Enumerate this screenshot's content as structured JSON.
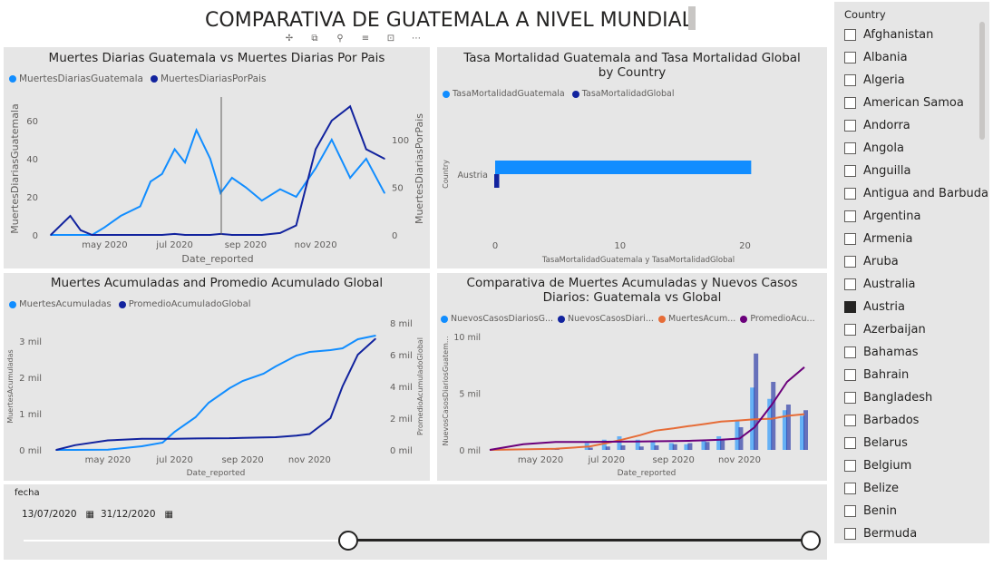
{
  "header": {
    "title": "COMPARATIVA DE GUATEMALA A NIVEL MUNDIAL"
  },
  "toolbar_icons": [
    "pin-icon",
    "copy-icon",
    "filter-icon",
    "focus-icon",
    "expand-icon",
    "more-icon"
  ],
  "colors": {
    "light_blue": "#118dff",
    "dark_blue": "#12239e",
    "orange": "#e66c37",
    "purple": "#6b007b",
    "panel": "#e6e6e6"
  },
  "chart1": {
    "title": "Muertes Diarias Guatemala vs Muertes Diarias Por Pais",
    "legend": [
      "MuertesDiariasGuatemala",
      "MuertesDiariasPorPais"
    ],
    "ylabel_left": "MuertesDiariasGuatemala",
    "ylabel_right": "MuertesDiariasPorPais",
    "xlabel": "Date_reported",
    "xticks": [
      "may 2020",
      "jul 2020",
      "sep 2020",
      "nov 2020"
    ],
    "yticks_left": [
      "0",
      "20",
      "40",
      "60"
    ],
    "yticks_right": [
      "0",
      "50",
      "100"
    ]
  },
  "chart2": {
    "title": "Tasa Mortalidad Guatemala and Tasa Mortalidad Global by Country",
    "legend": [
      "TasaMortalidadGuatemala",
      "TasaMortalidadGlobal"
    ],
    "ylabel": "Country",
    "xlabel": "TasaMortalidadGuatemala y TasaMortalidadGlobal",
    "category": "Austria",
    "xticks": [
      "0",
      "10",
      "20"
    ]
  },
  "chart3": {
    "title": "Muertes Acumuladas and Promedio Acumulado Global",
    "legend": [
      "MuertesAcumuladas",
      "PromedioAcumuladoGlobal"
    ],
    "ylabel_left": "MuertesAcumuladas",
    "ylabel_right": "PromedioAcumuladoGlobal",
    "xlabel": "Date_reported",
    "xticks": [
      "may 2020",
      "jul 2020",
      "sep 2020",
      "nov 2020"
    ],
    "yticks_left": [
      "0 mil",
      "1 mil",
      "2 mil",
      "3 mil"
    ],
    "yticks_right": [
      "0 mil",
      "2 mil",
      "4 mil",
      "6 mil",
      "8 mil"
    ]
  },
  "chart4": {
    "title": "Comparativa de Muertes Acumuladas y Nuevos Casos Diarios: Guatemala vs Global",
    "legend": [
      "NuevosCasosDiariosG...",
      "NuevosCasosDiari...",
      "MuertesAcum...",
      "PromedioAcu..."
    ],
    "ylabel": "NuevosCasosDiariosGuatem...",
    "xlabel": "Date_reported",
    "xticks": [
      "may 2020",
      "jul 2020",
      "sep 2020",
      "nov 2020"
    ],
    "yticks": [
      "0 mil",
      "5 mil",
      "10 mil"
    ]
  },
  "chart_data": [
    {
      "type": "line",
      "title": "Muertes Diarias Guatemala vs Muertes Diarias Por Pais",
      "xlabel": "Date_reported",
      "ylabel": "MuertesDiariasGuatemala",
      "y2label": "MuertesDiariasPorPais",
      "ylim": [
        0,
        70
      ],
      "y2lim": [
        0,
        140
      ],
      "x": [
        "2020-03-15",
        "2020-04-01",
        "2020-04-10",
        "2020-04-20",
        "2020-05-01",
        "2020-05-15",
        "2020-06-01",
        "2020-06-10",
        "2020-06-20",
        "2020-07-01",
        "2020-07-10",
        "2020-07-20",
        "2020-08-01",
        "2020-08-10",
        "2020-08-20",
        "2020-09-01",
        "2020-09-15",
        "2020-10-01",
        "2020-10-15",
        "2020-11-01",
        "2020-11-15",
        "2020-12-01",
        "2020-12-15",
        "2020-12-31"
      ],
      "series": [
        {
          "name": "MuertesDiariasGuatemala",
          "values": [
            0,
            0,
            0,
            0,
            4,
            10,
            15,
            28,
            32,
            45,
            38,
            55,
            40,
            22,
            30,
            25,
            18,
            24,
            20,
            35,
            50,
            30,
            40,
            22
          ]
        },
        {
          "name": "MuertesDiariasPorPais",
          "values": [
            0,
            20,
            5,
            0,
            0,
            0,
            0,
            0,
            0,
            1,
            0,
            0,
            0,
            1,
            0,
            0,
            0,
            2,
            10,
            90,
            120,
            135,
            90,
            80
          ]
        }
      ]
    },
    {
      "type": "bar",
      "title": "Tasa Mortalidad Guatemala and Tasa Mortalidad Global by Country",
      "xlabel": "TasaMortalidadGuatemala y TasaMortalidadGlobal",
      "ylabel": "Country",
      "categories": [
        "Austria"
      ],
      "xlim": [
        0,
        22
      ],
      "series": [
        {
          "name": "TasaMortalidadGuatemala",
          "values": [
            20.5
          ]
        },
        {
          "name": "TasaMortalidadGlobal",
          "values": [
            0.4
          ]
        }
      ]
    },
    {
      "type": "line",
      "title": "Muertes Acumuladas and Promedio Acumulado Global",
      "xlabel": "Date_reported",
      "ylabel": "MuertesAcumuladas",
      "y2label": "PromedioAcumuladoGlobal",
      "ylim": [
        0,
        3500
      ],
      "y2lim": [
        0,
        8000
      ],
      "x": [
        "2020-03-15",
        "2020-04-01",
        "2020-05-01",
        "2020-06-01",
        "2020-06-20",
        "2020-07-01",
        "2020-07-20",
        "2020-08-01",
        "2020-08-20",
        "2020-09-01",
        "2020-09-20",
        "2020-10-01",
        "2020-10-20",
        "2020-11-01",
        "2020-11-20",
        "2020-12-01",
        "2020-12-15",
        "2020-12-31"
      ],
      "series": [
        {
          "name": "MuertesAcumuladas",
          "values": [
            0,
            0,
            5,
            100,
            200,
            500,
            900,
            1300,
            1700,
            1900,
            2100,
            2300,
            2600,
            2700,
            2750,
            2800,
            3050,
            3150
          ]
        },
        {
          "name": "PromedioAcumuladoGlobal",
          "values": [
            0,
            300,
            600,
            700,
            700,
            700,
            720,
            730,
            740,
            760,
            780,
            800,
            900,
            1000,
            2000,
            4000,
            6000,
            7000
          ]
        }
      ]
    },
    {
      "type": "line",
      "title": "Comparativa de Muertes Acumuladas y Nuevos Casos Diarios: Guatemala vs Global",
      "xlabel": "Date_reported",
      "ylabel": "NuevosCasosDiariosGuatem...",
      "ylim": [
        0,
        10000
      ],
      "x": [
        "2020-03-15",
        "2020-04-15",
        "2020-05-15",
        "2020-06-15",
        "2020-07-01",
        "2020-07-15",
        "2020-08-01",
        "2020-08-15",
        "2020-09-01",
        "2020-09-15",
        "2020-10-01",
        "2020-10-15",
        "2020-11-01",
        "2020-11-15",
        "2020-12-01",
        "2020-12-15",
        "2020-12-31"
      ],
      "series": [
        {
          "name": "NuevosCasosDiariosG...",
          "values": [
            0,
            0,
            100,
            600,
            900,
            1200,
            900,
            700,
            600,
            500,
            800,
            1200,
            2600,
            5500,
            4500,
            3500,
            3000
          ]
        },
        {
          "name": "NuevosCasosDiari...",
          "values": [
            0,
            0,
            50,
            200,
            300,
            400,
            300,
            400,
            500,
            600,
            700,
            900,
            2000,
            8500,
            6000,
            4000,
            3500
          ]
        },
        {
          "name": "MuertesAcum...",
          "values": [
            0,
            50,
            100,
            300,
            600,
            900,
            1300,
            1700,
            1900,
            2100,
            2300,
            2500,
            2600,
            2700,
            2750,
            3000,
            3150
          ]
        },
        {
          "name": "PromedioAcu...",
          "values": [
            0,
            500,
            700,
            700,
            720,
            730,
            740,
            760,
            780,
            800,
            850,
            900,
            1000,
            2000,
            4000,
            6000,
            7300
          ]
        }
      ]
    }
  ],
  "datefilter": {
    "label": "fecha",
    "start": "13/07/2020",
    "end": "31/12/2020"
  },
  "slicer": {
    "header": "Country",
    "items": [
      {
        "label": "Afghanistan",
        "checked": false
      },
      {
        "label": "Albania",
        "checked": false
      },
      {
        "label": "Algeria",
        "checked": false
      },
      {
        "label": "American Samoa",
        "checked": false
      },
      {
        "label": "Andorra",
        "checked": false
      },
      {
        "label": "Angola",
        "checked": false
      },
      {
        "label": "Anguilla",
        "checked": false
      },
      {
        "label": "Antigua and Barbuda",
        "checked": false
      },
      {
        "label": "Argentina",
        "checked": false
      },
      {
        "label": "Armenia",
        "checked": false
      },
      {
        "label": "Aruba",
        "checked": false
      },
      {
        "label": "Australia",
        "checked": false
      },
      {
        "label": "Austria",
        "checked": true
      },
      {
        "label": "Azerbaijan",
        "checked": false
      },
      {
        "label": "Bahamas",
        "checked": false
      },
      {
        "label": "Bahrain",
        "checked": false
      },
      {
        "label": "Bangladesh",
        "checked": false
      },
      {
        "label": "Barbados",
        "checked": false
      },
      {
        "label": "Belarus",
        "checked": false
      },
      {
        "label": "Belgium",
        "checked": false
      },
      {
        "label": "Belize",
        "checked": false
      },
      {
        "label": "Benin",
        "checked": false
      },
      {
        "label": "Bermuda",
        "checked": false
      }
    ]
  }
}
